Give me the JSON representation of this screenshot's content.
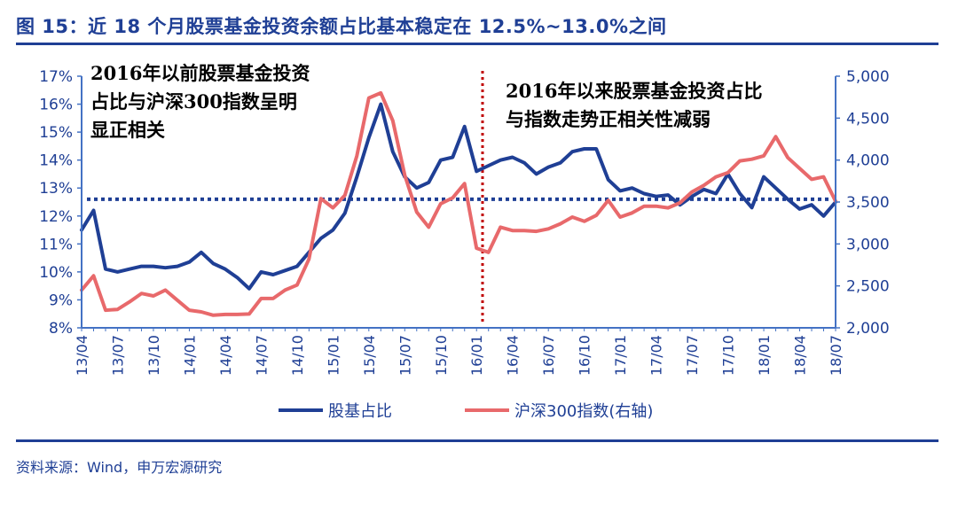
{
  "figure": {
    "title": "图 15：近 18 个月股票基金投资余额占比基本稳定在 12.5%~13.0%之间",
    "source": "资料来源：Wind，申万宏源研究"
  },
  "colors": {
    "title": "#1f3f95",
    "axis": "#4472c4",
    "series_share": "#1f3f95",
    "series_index": "#e8696b",
    "reference_line": "#1f3f95",
    "divider": "#c00000"
  },
  "chart_data": {
    "type": "line",
    "x": [
      "13/04",
      "13/05",
      "13/06",
      "13/07",
      "13/08",
      "13/09",
      "13/10",
      "13/11",
      "13/12",
      "14/01",
      "14/02",
      "14/03",
      "14/04",
      "14/05",
      "14/06",
      "14/07",
      "14/08",
      "14/09",
      "14/10",
      "14/11",
      "14/12",
      "15/01",
      "15/02",
      "15/03",
      "15/04",
      "15/05",
      "15/06",
      "15/07",
      "15/08",
      "15/09",
      "15/10",
      "15/11",
      "15/12",
      "16/01",
      "16/02",
      "16/03",
      "16/04",
      "16/05",
      "16/06",
      "16/07",
      "16/08",
      "16/09",
      "16/10",
      "16/11",
      "16/12",
      "17/01",
      "17/02",
      "17/03",
      "17/04",
      "17/05",
      "17/06",
      "17/07",
      "17/08",
      "17/09",
      "17/10",
      "17/11",
      "17/12",
      "18/01",
      "18/02",
      "18/03",
      "18/04",
      "18/05",
      "18/06",
      "18/07"
    ],
    "xtick_labels": [
      "13/04",
      "13/07",
      "13/10",
      "14/01",
      "14/04",
      "14/07",
      "14/10",
      "15/01",
      "15/04",
      "15/07",
      "15/10",
      "16/01",
      "16/04",
      "16/07",
      "16/10",
      "17/01",
      "17/04",
      "17/07",
      "17/10",
      "18/01",
      "18/04",
      "18/07"
    ],
    "series": [
      {
        "name": "股基占比",
        "axis": "left",
        "values": [
          11.5,
          12.2,
          10.1,
          10.0,
          10.1,
          10.2,
          10.2,
          10.15,
          10.2,
          10.35,
          10.7,
          10.3,
          10.1,
          9.8,
          9.4,
          10.0,
          9.9,
          10.05,
          10.2,
          10.7,
          11.2,
          11.5,
          12.1,
          13.4,
          14.8,
          16.0,
          14.3,
          13.4,
          13.0,
          13.2,
          14.0,
          14.1,
          15.2,
          13.6,
          13.8,
          14.0,
          14.1,
          13.9,
          13.5,
          13.75,
          13.9,
          14.3,
          14.4,
          14.4,
          13.3,
          12.9,
          13.0,
          12.8,
          12.7,
          12.75,
          12.4,
          12.7,
          12.95,
          12.8,
          13.5,
          12.8,
          12.3,
          13.4,
          13.0,
          12.6,
          12.25,
          12.4,
          12.0,
          12.5
        ]
      },
      {
        "name": "沪深300指数(右轴)",
        "axis": "right",
        "values": [
          2450,
          2620,
          2210,
          2220,
          2310,
          2410,
          2380,
          2450,
          2330,
          2210,
          2190,
          2150,
          2160,
          2160,
          2165,
          2350,
          2350,
          2450,
          2510,
          2820,
          3540,
          3430,
          3580,
          4050,
          4740,
          4800,
          4470,
          3820,
          3380,
          3200,
          3480,
          3550,
          3720,
          2950,
          2900,
          3200,
          3160,
          3160,
          3150,
          3180,
          3240,
          3320,
          3270,
          3340,
          3520,
          3320,
          3370,
          3450,
          3450,
          3430,
          3490,
          3620,
          3700,
          3800,
          3850,
          3990,
          4010,
          4050,
          4280,
          4030,
          3900,
          3770,
          3800,
          3510
        ],
        "values_note": "approximate, read from chart"
      }
    ],
    "reference_line": {
      "axis": "left",
      "value": 12.6
    },
    "divider_at": "16/02",
    "y_left": {
      "min": 8,
      "max": 17,
      "ticks": [
        8,
        9,
        10,
        11,
        12,
        13,
        14,
        15,
        16,
        17
      ],
      "format": "%"
    },
    "y_right": {
      "min": 2000,
      "max": 5000,
      "ticks": [
        2000,
        2500,
        3000,
        3500,
        4000,
        4500,
        5000
      ]
    },
    "annotations": [
      {
        "lines": [
          "2016年以前股票基金投资",
          "占比与沪深300指数呈明",
          "显正相关"
        ],
        "region": "left"
      },
      {
        "lines": [
          "2016年以来股票基金投资占比",
          "与指数走势正相关性减弱"
        ],
        "region": "right"
      }
    ],
    "legend": {
      "placement": "bottom-center"
    }
  }
}
